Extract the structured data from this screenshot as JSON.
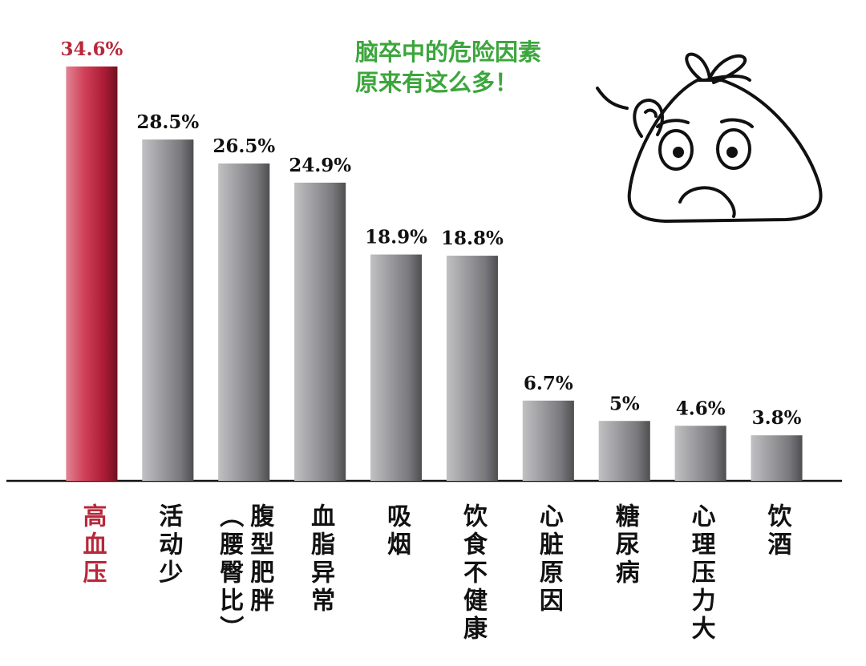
{
  "chart_data": {
    "type": "bar",
    "annotation": [
      "脑卒中的危险因素",
      "原来有这么多！"
    ],
    "categories": [
      "高血压",
      "活动少",
      "腹型肥胖\n（腰臀比）",
      "血脂异常",
      "吸烟",
      "饮食不健康",
      "心脏原因",
      "糖尿病",
      "心理压力大",
      "饮酒"
    ],
    "values": [
      34.6,
      28.5,
      26.5,
      24.9,
      18.9,
      18.8,
      6.7,
      5,
      4.6,
      3.8
    ],
    "value_labels": [
      "34.6%",
      "28.5%",
      "26.5%",
      "24.9%",
      "18.9%",
      "18.8%",
      "6.7%",
      "5%",
      "4.6%",
      "3.8%"
    ],
    "colors": [
      "#c8203c",
      "#8e8e92",
      "#8e8e92",
      "#8e8e92",
      "#8e8e92",
      "#8e8e92",
      "#8e8e92",
      "#8e8e92",
      "#8e8e92",
      "#8e8e92"
    ],
    "label_colors": [
      "#b8283a",
      "#111111",
      "#111111",
      "#111111",
      "#111111",
      "#111111",
      "#111111",
      "#111111",
      "#111111",
      "#111111"
    ],
    "annotation_color": "#3ca63c",
    "ylim": [
      0,
      35
    ]
  }
}
